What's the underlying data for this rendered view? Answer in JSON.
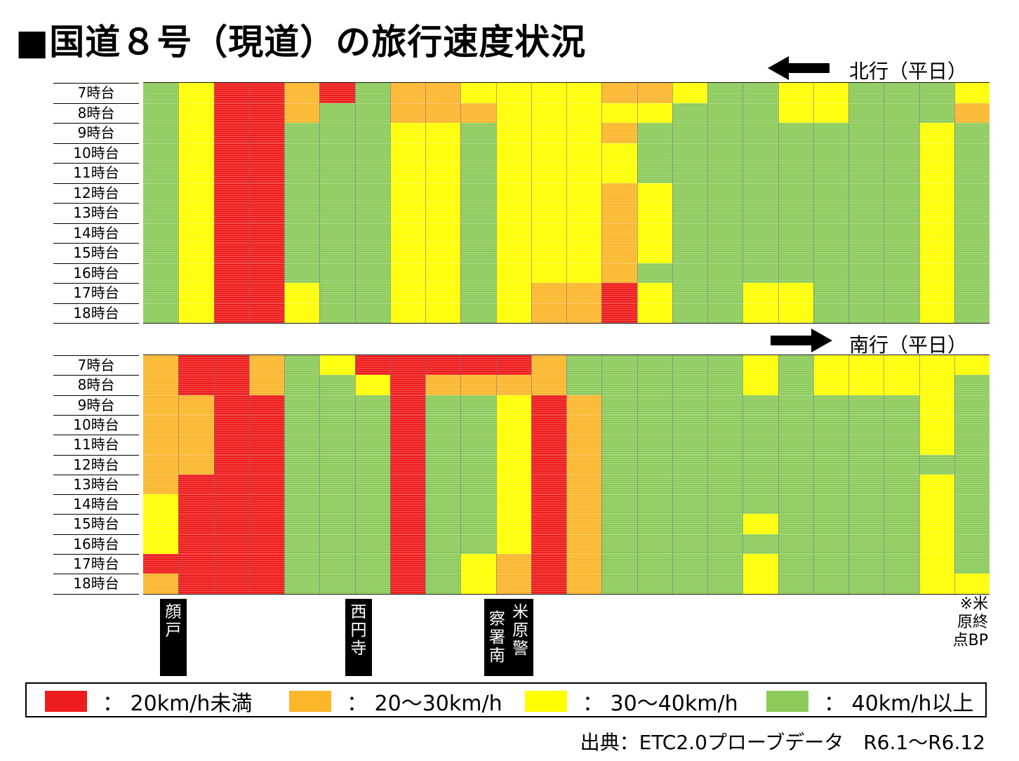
{
  "title": "■国道８号（現道）の旅行速度状況",
  "colors": {
    "red": "#EE1C1C",
    "orange": "#FBB62A",
    "yellow": "#FFFF00",
    "green": "#8CCB5A"
  },
  "chart_data": [
    {
      "type": "heatmap",
      "direction_label": "北行（平日）",
      "arrow": "left",
      "hours": [
        "7時台",
        "8時台",
        "9時台",
        "10時台",
        "11時台",
        "12時台",
        "13時台",
        "14時台",
        "15時台",
        "16時台",
        "17時台",
        "18時台"
      ],
      "segment_count": 24,
      "speed_class_codes": {
        "R": "20km/h未満",
        "O": "20～30km/h",
        "Y": "30～40km/h",
        "G": "40km/h以上"
      },
      "rows": [
        "GYRRORGOOYYYYOOYGGYYGGGY",
        "GYRROGGOOOYYYYYGGGYYGGGO",
        "GYRRGGGYYGYYYOGGGGGGGGYG",
        "GYRRGGGYYGYYYYGGGGGGGGYG",
        "GYRRGGGYYGYYYYGGGGGGGGYG",
        "GYRRGGGYYGYYYOYGGGGGGGYG",
        "GYRRGGGYYGYYYOYGGGGGGGYG",
        "GYRRGGGYYGYYYOYGGGGGGGYG",
        "GYRRGGGYYGYYYOYGGGGGGGYG",
        "GYRRGGGYYGYYYOGGGGGGGGYG",
        "GYRRYGGYYGYOORYGGYYGGGYG",
        "GYRRYGGYYGYOORYGGYYGGGYG"
      ]
    },
    {
      "type": "heatmap",
      "direction_label": "南行（平日）",
      "arrow": "right",
      "hours": [
        "7時台",
        "8時台",
        "9時台",
        "10時台",
        "11時台",
        "12時台",
        "13時台",
        "14時台",
        "15時台",
        "16時台",
        "17時台",
        "18時台"
      ],
      "segment_count": 24,
      "speed_class_codes": {
        "R": "20km/h未満",
        "O": "20～30km/h",
        "Y": "30～40km/h",
        "G": "40km/h以上"
      },
      "rows": [
        "ORROGYRRRRROGGGGGYGYYYYY",
        "ORROGGYROOOOGGGGGYGYYYYG",
        "OORRGGGRGGYROGGGGGGGGGYG",
        "OORRGGGRGGYROGGGGGGGGGYG",
        "OORRGGGRGGYROGGGGGGGGGYG",
        "OORRGGGRGGYROGGGGGGGGGGG",
        "ORRRGGGRGGYROGGGGGGGGGYG",
        "YRRRGGGRGGYROGGGGGGGGGYG",
        "YRRRGGGRGGYROGGGGYGGGGYG",
        "YRRRGGGRGGYROGGGGGGGGGYG",
        "RRRRGGGRGYOROGGGGYGGGGYG",
        "ORRRGGGRGYOROGGGGYGGGGYY"
      ]
    }
  ],
  "landmarks": [
    {
      "label_lines": [
        "顔",
        "戸"
      ]
    },
    {
      "label_lines": [
        "西",
        "円",
        "寺"
      ]
    },
    {
      "label_lines": [
        "米",
        "原",
        "警",
        "察",
        "署",
        "南"
      ]
    }
  ],
  "note": "※米原終点BP",
  "legend": [
    {
      "color_key": "red",
      "label": "： 20km/h未満"
    },
    {
      "color_key": "orange",
      "label": "： 20～30km/h"
    },
    {
      "color_key": "yellow",
      "label": "： 30～40km/h"
    },
    {
      "color_key": "green",
      "label": "： 40km/h以上"
    }
  ],
  "source": "出典：ETC2.0プローブデータ　R6.1～R6.12"
}
